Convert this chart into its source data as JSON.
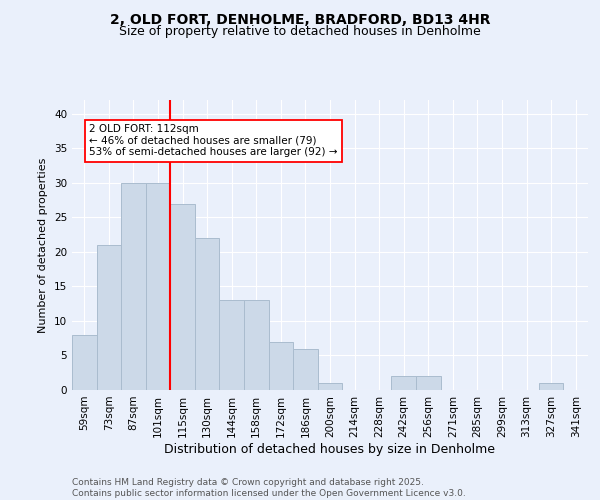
{
  "title": "2, OLD FORT, DENHOLME, BRADFORD, BD13 4HR",
  "subtitle": "Size of property relative to detached houses in Denholme",
  "xlabel": "Distribution of detached houses by size in Denholme",
  "ylabel": "Number of detached properties",
  "categories": [
    "59sqm",
    "73sqm",
    "87sqm",
    "101sqm",
    "115sqm",
    "130sqm",
    "144sqm",
    "158sqm",
    "172sqm",
    "186sqm",
    "200sqm",
    "214sqm",
    "228sqm",
    "242sqm",
    "256sqm",
    "271sqm",
    "285sqm",
    "299sqm",
    "313sqm",
    "327sqm",
    "341sqm"
  ],
  "values": [
    8,
    21,
    30,
    30,
    27,
    22,
    13,
    13,
    7,
    6,
    1,
    0,
    0,
    2,
    2,
    0,
    0,
    0,
    0,
    1,
    0
  ],
  "bar_color": "#ccd9e8",
  "bar_edge_color": "#aabcce",
  "vline_color": "red",
  "annotation_text": "2 OLD FORT: 112sqm\n← 46% of detached houses are smaller (79)\n53% of semi-detached houses are larger (92) →",
  "annotation_box_color": "white",
  "annotation_box_edge_color": "red",
  "ylim": [
    0,
    42
  ],
  "yticks": [
    0,
    5,
    10,
    15,
    20,
    25,
    30,
    35,
    40
  ],
  "footer_line1": "Contains HM Land Registry data © Crown copyright and database right 2025.",
  "footer_line2": "Contains public sector information licensed under the Open Government Licence v3.0.",
  "background_color": "#eaf0fb",
  "plot_background_color": "#eaf0fb",
  "title_fontsize": 10,
  "subtitle_fontsize": 9,
  "xlabel_fontsize": 9,
  "ylabel_fontsize": 8,
  "tick_fontsize": 7.5,
  "footer_fontsize": 6.5,
  "grid_color": "white",
  "annotation_fontsize": 7.5
}
